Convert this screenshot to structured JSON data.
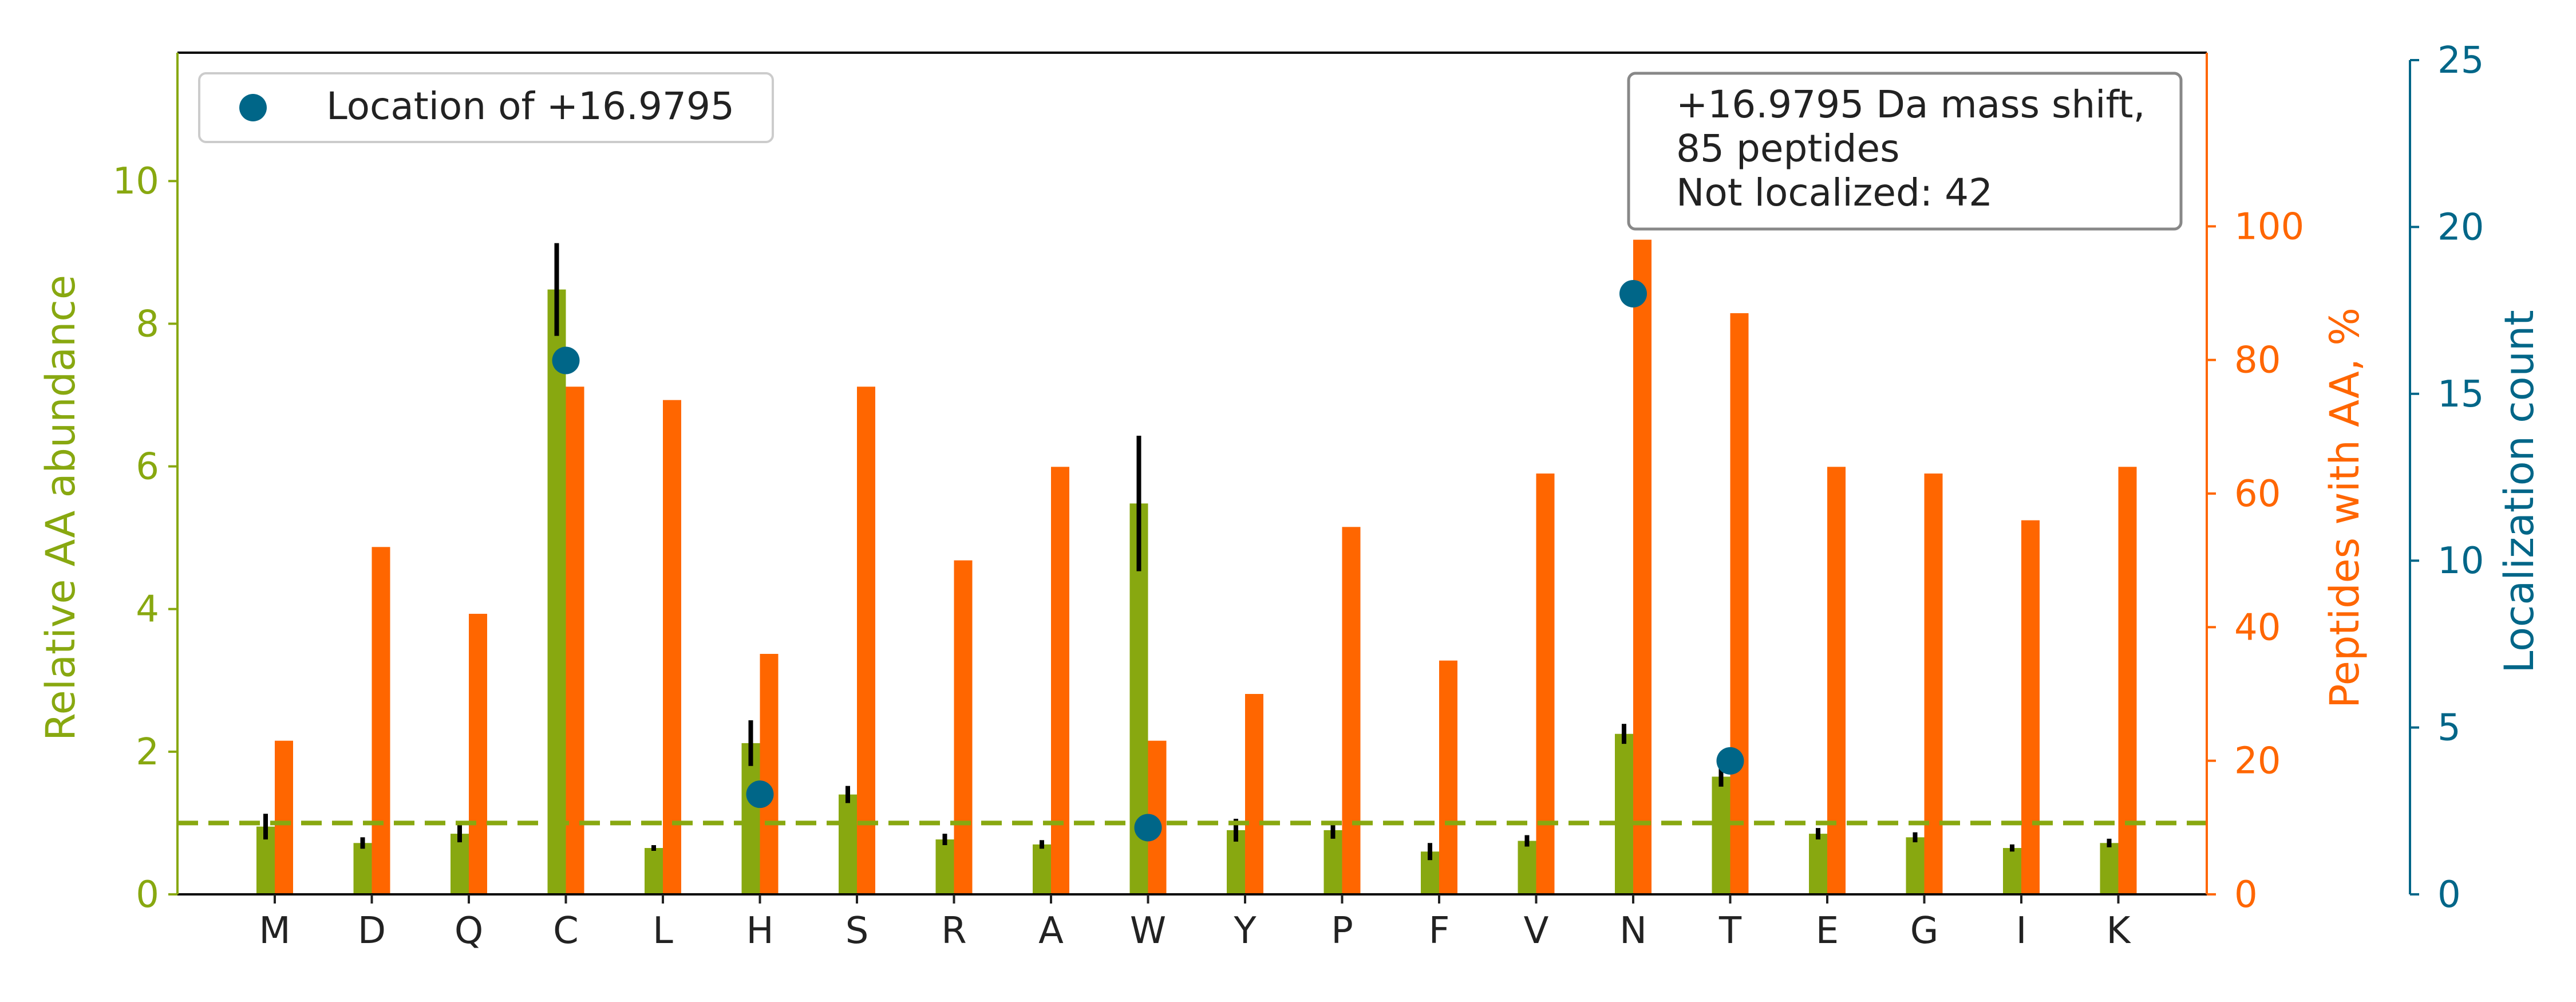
{
  "chart_data": {
    "type": "bar",
    "categories": [
      "M",
      "D",
      "Q",
      "C",
      "L",
      "H",
      "S",
      "R",
      "A",
      "W",
      "Y",
      "P",
      "F",
      "V",
      "N",
      "T",
      "E",
      "G",
      "I",
      "K"
    ],
    "series": [
      {
        "axis": "left",
        "color": "#88a810",
        "values": [
          0.95,
          0.72,
          0.85,
          8.48,
          0.65,
          2.12,
          1.4,
          0.77,
          0.7,
          5.48,
          0.9,
          0.9,
          0.6,
          0.75,
          2.25,
          1.65,
          0.85,
          0.8,
          0.65,
          0.72
        ],
        "errors": [
          0.18,
          0.08,
          0.12,
          0.65,
          0.04,
          0.32,
          0.12,
          0.08,
          0.06,
          0.95,
          0.16,
          0.12,
          0.12,
          0.08,
          0.14,
          0.14,
          0.08,
          0.07,
          0.05,
          0.06
        ]
      },
      {
        "axis": "right",
        "color": "#ff6600",
        "values": [
          23,
          52,
          42,
          76,
          74,
          36,
          76,
          50,
          64,
          23,
          30,
          55,
          35,
          63,
          98,
          87,
          64,
          63,
          56,
          64
        ]
      },
      {
        "name": "Location of +16.9795",
        "axis": "far-right",
        "type": "scatter",
        "color": "#006688",
        "points": [
          {
            "category": "C",
            "value": 16
          },
          {
            "category": "H",
            "value": 3
          },
          {
            "category": "W",
            "value": 2
          },
          {
            "category": "N",
            "value": 18
          },
          {
            "category": "T",
            "value": 4
          }
        ]
      }
    ],
    "reference_line": {
      "value": 1,
      "axis": "left",
      "style": "dashed",
      "color": "#88a810"
    },
    "y_left": {
      "label": "Relative AA abundance",
      "ylim": [
        0,
        11.8
      ],
      "ticks": [
        "0",
        "2",
        "4",
        "6",
        "8",
        "10"
      ],
      "color": "#88a810"
    },
    "y_right": {
      "label": "Peptides with AA, %",
      "ylim": [
        0,
        126
      ],
      "ticks": [
        "0",
        "20",
        "40",
        "60",
        "80",
        "100"
      ],
      "color": "#ff6600"
    },
    "y_far_right": {
      "label": "Localization count",
      "ylim": [
        0,
        25
      ],
      "ticks": [
        "0",
        "5",
        "10",
        "15",
        "20",
        "25"
      ],
      "color": "#006688"
    },
    "legend": {
      "label": "Location of +16.9795",
      "placement": "top-left"
    },
    "annotation": {
      "lines": [
        "+16.9795 Da mass shift,",
        "85 peptides",
        "Not localized: 42"
      ],
      "placement": "top-right"
    },
    "grid": false
  }
}
